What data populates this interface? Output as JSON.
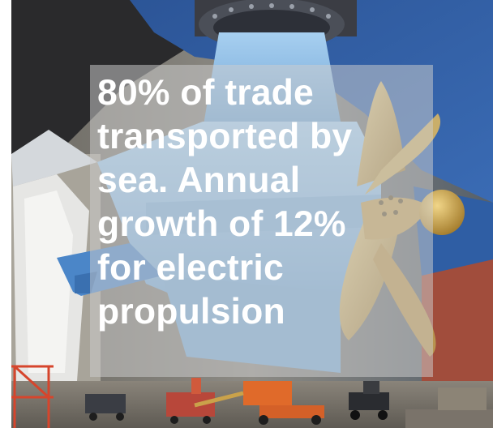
{
  "image": {
    "description_icon": "ship-propeller-photo",
    "colors": {
      "hull_blue": "#3f6fb5",
      "pod_blue": "#86b7df",
      "propeller_bronze": "#c4a35a",
      "hull_red": "#9c4a3a",
      "overlay_text": "#ffffff"
    }
  },
  "overlay": {
    "lines": [
      "80% of trade",
      "transported by",
      "sea. Annual",
      "growth of 12%",
      "for electric",
      "propulsion"
    ]
  }
}
